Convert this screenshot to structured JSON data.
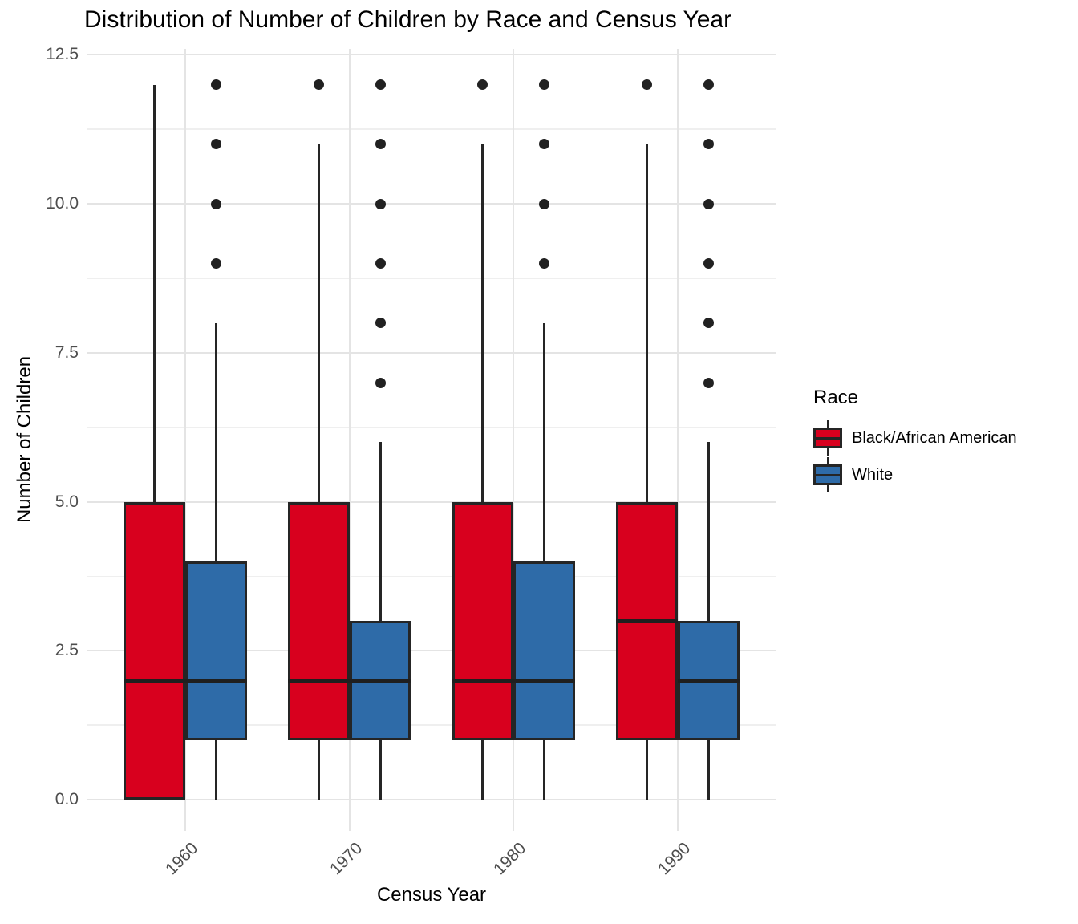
{
  "chart_data": {
    "type": "grouped_boxplot",
    "title": "Distribution of Number of Children by Race and Census Year",
    "x_axis": {
      "label": "Census Year",
      "categories": [
        "1960",
        "1970",
        "1980",
        "1990"
      ],
      "tick_angle_deg": 45
    },
    "y_axis": {
      "label": "Number of Children",
      "ticks": [
        {
          "value": 0.0,
          "label": "0.0"
        },
        {
          "value": 2.5,
          "label": "2.5"
        },
        {
          "value": 5.0,
          "label": "5.0"
        },
        {
          "value": 7.5,
          "label": "7.5"
        },
        {
          "value": 10.0,
          "label": "10.0"
        },
        {
          "value": 12.5,
          "label": "12.5"
        }
      ],
      "minor_ticks": [
        1.25,
        3.75,
        6.25,
        8.75,
        11.25
      ],
      "range": [
        0,
        12
      ]
    },
    "legend": {
      "title": "Race",
      "position": "right",
      "items": [
        {
          "label": "Black/African American",
          "color": "#d8001e"
        },
        {
          "label": "White",
          "color": "#2e6ba8"
        }
      ]
    },
    "grid": true,
    "style": {
      "box_outline": "#252525",
      "median_color": "#1f1f1f",
      "outlier_color": "#212121",
      "grid_major": "#e4e4e4",
      "grid_minor": "#efefef",
      "tick_label_color": "#4d4d4d"
    },
    "series": [
      {
        "name": "Black/African American",
        "color": "#d8001e",
        "boxes": [
          {
            "category": "1960",
            "whisker_low": 0,
            "q1": 0,
            "median": 2,
            "q3": 5,
            "whisker_high": 12,
            "outliers": []
          },
          {
            "category": "1970",
            "whisker_low": 0,
            "q1": 1,
            "median": 2,
            "q3": 5,
            "whisker_high": 11,
            "outliers": [
              12
            ]
          },
          {
            "category": "1980",
            "whisker_low": 0,
            "q1": 1,
            "median": 2,
            "q3": 5,
            "whisker_high": 11,
            "outliers": [
              12
            ]
          },
          {
            "category": "1990",
            "whisker_low": 0,
            "q1": 1,
            "median": 3,
            "q3": 5,
            "whisker_high": 11,
            "outliers": [
              12
            ]
          }
        ]
      },
      {
        "name": "White",
        "color": "#2e6ba8",
        "boxes": [
          {
            "category": "1960",
            "whisker_low": 0,
            "q1": 1,
            "median": 2,
            "q3": 4,
            "whisker_high": 8,
            "outliers": [
              9,
              10,
              11,
              12
            ]
          },
          {
            "category": "1970",
            "whisker_low": 0,
            "q1": 1,
            "median": 2,
            "q3": 3,
            "whisker_high": 6,
            "outliers": [
              7,
              8,
              9,
              10,
              11,
              12
            ]
          },
          {
            "category": "1980",
            "whisker_low": 0,
            "q1": 1,
            "median": 2,
            "q3": 4,
            "whisker_high": 8,
            "outliers": [
              9,
              10,
              11,
              12
            ]
          },
          {
            "category": "1990",
            "whisker_low": 0,
            "q1": 1,
            "median": 2,
            "q3": 3,
            "whisker_high": 6,
            "outliers": [
              7,
              8,
              9,
              10,
              11,
              12
            ]
          }
        ]
      }
    ]
  }
}
